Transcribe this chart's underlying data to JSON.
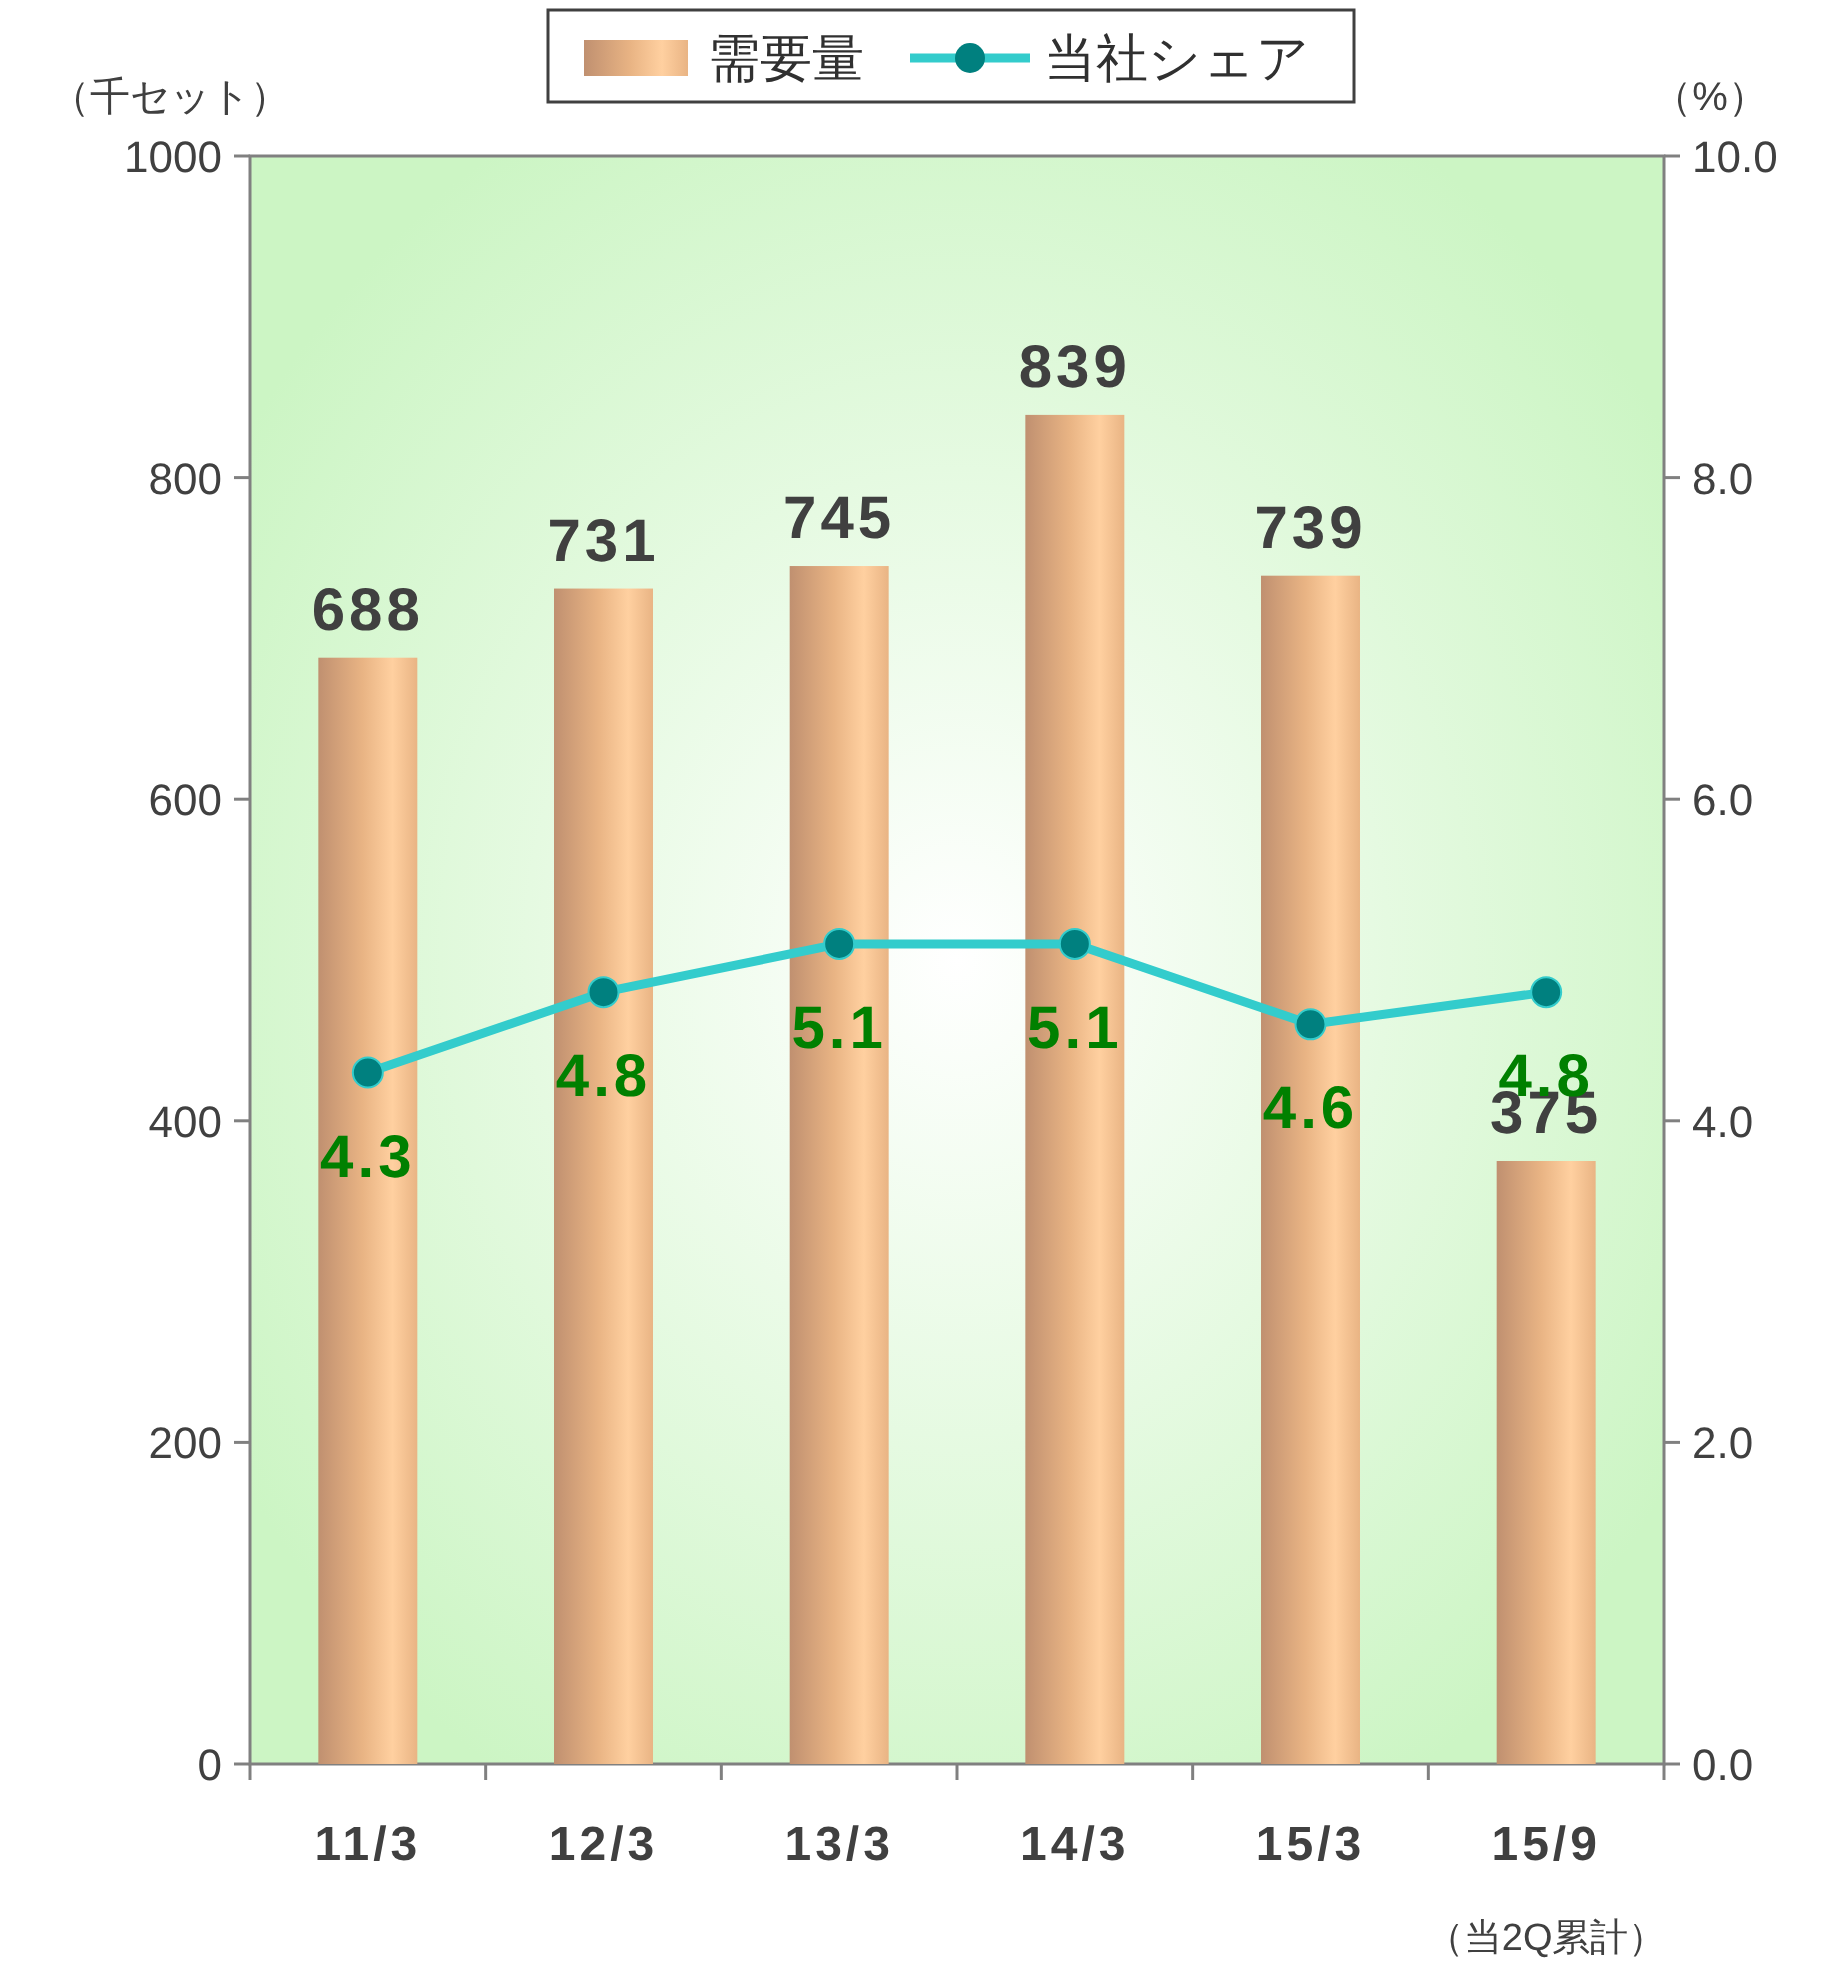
{
  "chart_data": {
    "type": "bar",
    "categories": [
      "11/3",
      "12/3",
      "13/3",
      "14/3",
      "15/3",
      "15/9"
    ],
    "series": [
      {
        "name": "需要量",
        "color": "#e9b484",
        "values": [
          688,
          731,
          745,
          839,
          739,
          375
        ]
      },
      {
        "name": "当社シェア",
        "type": "line",
        "color": "#33cccc",
        "axis": "y2",
        "marker": "circle",
        "values": [
          4.3,
          4.8,
          5.1,
          5.1,
          4.6,
          4.8
        ]
      }
    ],
    "ylim": [
      0,
      1000
    ],
    "yticks": [
      0,
      200,
      400,
      600,
      800,
      1000
    ],
    "y2lim": [
      0,
      10
    ],
    "y2ticks": [
      {
        "value": 0,
        "label": "0.0"
      },
      {
        "value": 2,
        "label": "2.0"
      },
      {
        "value": 4,
        "label": "4.0"
      },
      {
        "value": 6,
        "label": "6.0"
      },
      {
        "value": 8,
        "label": "8.0"
      },
      {
        "value": 10,
        "label": "10.0"
      }
    ],
    "ylabel": "（千セット）",
    "y2label": "（%）",
    "annotations": [
      "（当2Q累計）"
    ],
    "legend": "top",
    "data_labels": true,
    "grid": false
  }
}
